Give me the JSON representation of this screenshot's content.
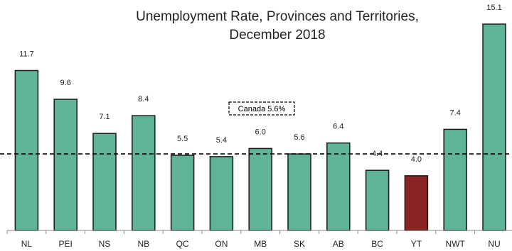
{
  "chart_data": {
    "type": "bar",
    "title_lines": [
      "Unemployment Rate, Provinces and Territories,",
      "December 2018"
    ],
    "categories": [
      "NL",
      "PEI",
      "NS",
      "NB",
      "QC",
      "ON",
      "MB",
      "SK",
      "AB",
      "BC",
      "YT",
      "NWT",
      "NU"
    ],
    "values": [
      11.7,
      9.6,
      7.1,
      8.4,
      5.5,
      5.4,
      6.0,
      5.6,
      6.4,
      4.4,
      4.0,
      7.4,
      15.1
    ],
    "value_labels": [
      "11.7",
      "9.6",
      "7.1",
      "8.4",
      "5.5",
      "5.4",
      "6.0",
      "5.6",
      "6.4",
      "4.4",
      "4.0",
      "7.4",
      "15.1"
    ],
    "highlight_index": 10,
    "reference_line": {
      "value": 5.6,
      "label": "Canada 5.6%",
      "style": "dashed"
    },
    "ylim": [
      0,
      15.1
    ],
    "grid": false,
    "legend": "none",
    "colors": {
      "bar": "#5fb396",
      "highlight": "#8b2323",
      "bar_stroke": "#1a1a1a",
      "reference": "#000000"
    }
  }
}
